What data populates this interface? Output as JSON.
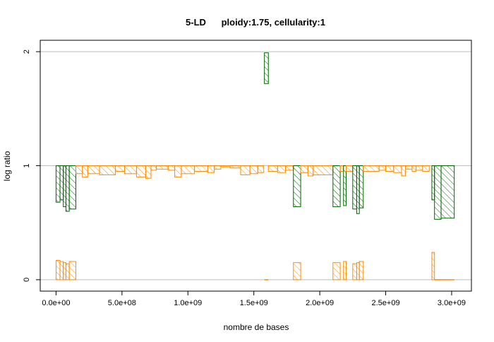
{
  "chart_data": {
    "type": "bar",
    "title": "5-LD      ploidy:1.75, cellularity:1",
    "xlabel": "nombre de bases",
    "ylabel": "log ratio",
    "xlim": [
      -120000000.0,
      3150000000.0
    ],
    "ylim": [
      -0.1,
      2.1
    ],
    "xticks": [
      {
        "value": 0,
        "label": "0.0e+00"
      },
      {
        "value": 500000000,
        "label": "5.0e+08"
      },
      {
        "value": 1000000000,
        "label": "1.0e+09"
      },
      {
        "value": 1500000000,
        "label": "1.5e+09"
      },
      {
        "value": 2000000000,
        "label": "2.0e+09"
      },
      {
        "value": 2500000000,
        "label": "2.5e+09"
      },
      {
        "value": 3000000000,
        "label": "3.0e+09"
      }
    ],
    "yticks": [
      {
        "value": 0,
        "label": "0"
      },
      {
        "value": 1,
        "label": "1"
      },
      {
        "value": 2,
        "label": "2"
      }
    ],
    "grid": {
      "horizontal_at": [
        0,
        1,
        2
      ],
      "color": "#bebebe"
    },
    "colors": {
      "green": "#006400",
      "orange": "#ff8c00"
    },
    "segments": [
      {
        "x0": 0,
        "x1": 30000000,
        "y0": 1,
        "y1": 0.68,
        "color": "green"
      },
      {
        "x0": 30000000,
        "x1": 55000000,
        "y0": 1,
        "y1": 0.7,
        "color": "green"
      },
      {
        "x0": 55000000,
        "x1": 75000000,
        "y0": 1,
        "y1": 0.64,
        "color": "green"
      },
      {
        "x0": 75000000,
        "x1": 100000000,
        "y0": 1,
        "y1": 0.6,
        "color": "green"
      },
      {
        "x0": 100000000,
        "x1": 150000000,
        "y0": 1,
        "y1": 0.62,
        "color": "green"
      },
      {
        "x0": 150000000,
        "x1": 200000000,
        "y0": 1,
        "y1": 0.93,
        "color": "orange"
      },
      {
        "x0": 200000000,
        "x1": 240000000,
        "y0": 1,
        "y1": 0.9,
        "color": "orange"
      },
      {
        "x0": 240000000,
        "x1": 330000000,
        "y0": 1,
        "y1": 0.93,
        "color": "orange"
      },
      {
        "x0": 330000000,
        "x1": 450000000,
        "y0": 1,
        "y1": 0.92,
        "color": "orange"
      },
      {
        "x0": 450000000,
        "x1": 520000000,
        "y0": 1,
        "y1": 0.95,
        "color": "orange"
      },
      {
        "x0": 520000000,
        "x1": 610000000,
        "y0": 1,
        "y1": 0.93,
        "color": "orange"
      },
      {
        "x0": 610000000,
        "x1": 680000000,
        "y0": 1,
        "y1": 0.9,
        "color": "orange"
      },
      {
        "x0": 680000000,
        "x1": 720000000,
        "y0": 1,
        "y1": 0.89,
        "color": "orange"
      },
      {
        "x0": 720000000,
        "x1": 760000000,
        "y0": 1,
        "y1": 0.96,
        "color": "orange"
      },
      {
        "x0": 760000000,
        "x1": 850000000,
        "y0": 1,
        "y1": 0.97,
        "color": "orange"
      },
      {
        "x0": 850000000,
        "x1": 900000000,
        "y0": 1,
        "y1": 0.96,
        "color": "orange"
      },
      {
        "x0": 900000000,
        "x1": 950000000,
        "y0": 1,
        "y1": 0.9,
        "color": "orange"
      },
      {
        "x0": 950000000,
        "x1": 1050000000,
        "y0": 1,
        "y1": 0.93,
        "color": "orange"
      },
      {
        "x0": 1050000000,
        "x1": 1150000000,
        "y0": 1,
        "y1": 0.95,
        "color": "orange"
      },
      {
        "x0": 1150000000,
        "x1": 1200000000,
        "y0": 1,
        "y1": 0.94,
        "color": "orange"
      },
      {
        "x0": 1200000000,
        "x1": 1250000000,
        "y0": 1,
        "y1": 0.97,
        "color": "orange"
      },
      {
        "x0": 1250000000,
        "x1": 1320000000,
        "y0": 1,
        "y1": 0.99,
        "color": "orange"
      },
      {
        "x0": 1320000000,
        "x1": 1400000000,
        "y0": 1,
        "y1": 0.98,
        "color": "orange"
      },
      {
        "x0": 1400000000,
        "x1": 1470000000,
        "y0": 1,
        "y1": 0.92,
        "color": "orange"
      },
      {
        "x0": 1470000000,
        "x1": 1530000000,
        "y0": 1,
        "y1": 0.93,
        "color": "orange"
      },
      {
        "x0": 1530000000,
        "x1": 1575000000,
        "y0": 1,
        "y1": 0.94,
        "color": "orange"
      },
      {
        "x0": 1580000000,
        "x1": 1610000000,
        "y0": 1.72,
        "y1": 1.99,
        "color": "green"
      },
      {
        "x0": 1610000000,
        "x1": 1680000000,
        "y0": 1,
        "y1": 0.95,
        "color": "orange"
      },
      {
        "x0": 1680000000,
        "x1": 1740000000,
        "y0": 1,
        "y1": 0.94,
        "color": "orange"
      },
      {
        "x0": 1740000000,
        "x1": 1800000000,
        "y0": 1,
        "y1": 0.96,
        "color": "orange"
      },
      {
        "x0": 1800000000,
        "x1": 1855000000,
        "y0": 1,
        "y1": 0.64,
        "color": "green"
      },
      {
        "x0": 1855000000,
        "x1": 1910000000,
        "y0": 1,
        "y1": 0.94,
        "color": "orange"
      },
      {
        "x0": 1910000000,
        "x1": 1950000000,
        "y0": 1,
        "y1": 0.91,
        "color": "orange"
      },
      {
        "x0": 1950000000,
        "x1": 2100000000,
        "y0": 1,
        "y1": 0.92,
        "color": "orange"
      },
      {
        "x0": 2100000000,
        "x1": 2155000000,
        "y0": 1,
        "y1": 0.64,
        "color": "green"
      },
      {
        "x0": 2155000000,
        "x1": 2180000000,
        "y0": 1,
        "y1": 0.95,
        "color": "orange"
      },
      {
        "x0": 2180000000,
        "x1": 2200000000,
        "y0": 1,
        "y1": 0.65,
        "color": "green"
      },
      {
        "x0": 2200000000,
        "x1": 2250000000,
        "y0": 1,
        "y1": 0.95,
        "color": "orange"
      },
      {
        "x0": 2250000000,
        "x1": 2280000000,
        "y0": 1,
        "y1": 0.62,
        "color": "green"
      },
      {
        "x0": 2280000000,
        "x1": 2300000000,
        "y0": 1,
        "y1": 0.58,
        "color": "green"
      },
      {
        "x0": 2300000000,
        "x1": 2330000000,
        "y0": 1,
        "y1": 0.63,
        "color": "green"
      },
      {
        "x0": 2330000000,
        "x1": 2450000000,
        "y0": 1,
        "y1": 0.95,
        "color": "orange"
      },
      {
        "x0": 2450000000,
        "x1": 2500000000,
        "y0": 1,
        "y1": 0.96,
        "color": "orange"
      },
      {
        "x0": 2500000000,
        "x1": 2560000000,
        "y0": 1,
        "y1": 0.95,
        "color": "orange"
      },
      {
        "x0": 2560000000,
        "x1": 2620000000,
        "y0": 1,
        "y1": 0.94,
        "color": "orange"
      },
      {
        "x0": 2620000000,
        "x1": 2650000000,
        "y0": 1,
        "y1": 0.91,
        "color": "orange"
      },
      {
        "x0": 2650000000,
        "x1": 2700000000,
        "y0": 1,
        "y1": 0.97,
        "color": "orange"
      },
      {
        "x0": 2700000000,
        "x1": 2730000000,
        "y0": 1,
        "y1": 0.95,
        "color": "orange"
      },
      {
        "x0": 2730000000,
        "x1": 2780000000,
        "y0": 1,
        "y1": 0.96,
        "color": "orange"
      },
      {
        "x0": 2780000000,
        "x1": 2830000000,
        "y0": 1,
        "y1": 0.95,
        "color": "orange"
      },
      {
        "x0": 2850000000,
        "x1": 2870000000,
        "y0": 1,
        "y1": 0.7,
        "color": "green"
      },
      {
        "x0": 2870000000,
        "x1": 2920000000,
        "y0": 1,
        "y1": 0.53,
        "color": "green"
      },
      {
        "x0": 2920000000,
        "x1": 3020000000,
        "y0": 1,
        "y1": 0.54,
        "color": "green"
      },
      {
        "x0": 0,
        "x1": 30000000,
        "y0": 0,
        "y1": 0.17,
        "color": "orange"
      },
      {
        "x0": 30000000,
        "x1": 55000000,
        "y0": 0,
        "y1": 0.16,
        "color": "orange"
      },
      {
        "x0": 55000000,
        "x1": 75000000,
        "y0": 0,
        "y1": 0.15,
        "color": "orange"
      },
      {
        "x0": 75000000,
        "x1": 100000000,
        "y0": 0,
        "y1": 0.14,
        "color": "orange"
      },
      {
        "x0": 100000000,
        "x1": 150000000,
        "y0": 0,
        "y1": 0.16,
        "color": "orange"
      },
      {
        "x0": 1580000000,
        "x1": 1610000000,
        "y0": 0,
        "y1": 0.0,
        "color": "orange"
      },
      {
        "x0": 1800000000,
        "x1": 1855000000,
        "y0": 0,
        "y1": 0.15,
        "color": "orange"
      },
      {
        "x0": 2100000000,
        "x1": 2155000000,
        "y0": 0,
        "y1": 0.15,
        "color": "orange"
      },
      {
        "x0": 2180000000,
        "x1": 2200000000,
        "y0": 0,
        "y1": 0.16,
        "color": "orange"
      },
      {
        "x0": 2250000000,
        "x1": 2280000000,
        "y0": 0,
        "y1": 0.14,
        "color": "orange"
      },
      {
        "x0": 2280000000,
        "x1": 2300000000,
        "y0": 0,
        "y1": 0.15,
        "color": "orange"
      },
      {
        "x0": 2300000000,
        "x1": 2330000000,
        "y0": 0,
        "y1": 0.16,
        "color": "orange"
      },
      {
        "x0": 2850000000,
        "x1": 2870000000,
        "y0": 0,
        "y1": 0.24,
        "color": "orange"
      },
      {
        "x0": 2870000000,
        "x1": 2920000000,
        "y0": 0,
        "y1": 0.0,
        "color": "orange"
      },
      {
        "x0": 2920000000,
        "x1": 3020000000,
        "y0": 0,
        "y1": 0.0,
        "color": "orange"
      }
    ]
  }
}
